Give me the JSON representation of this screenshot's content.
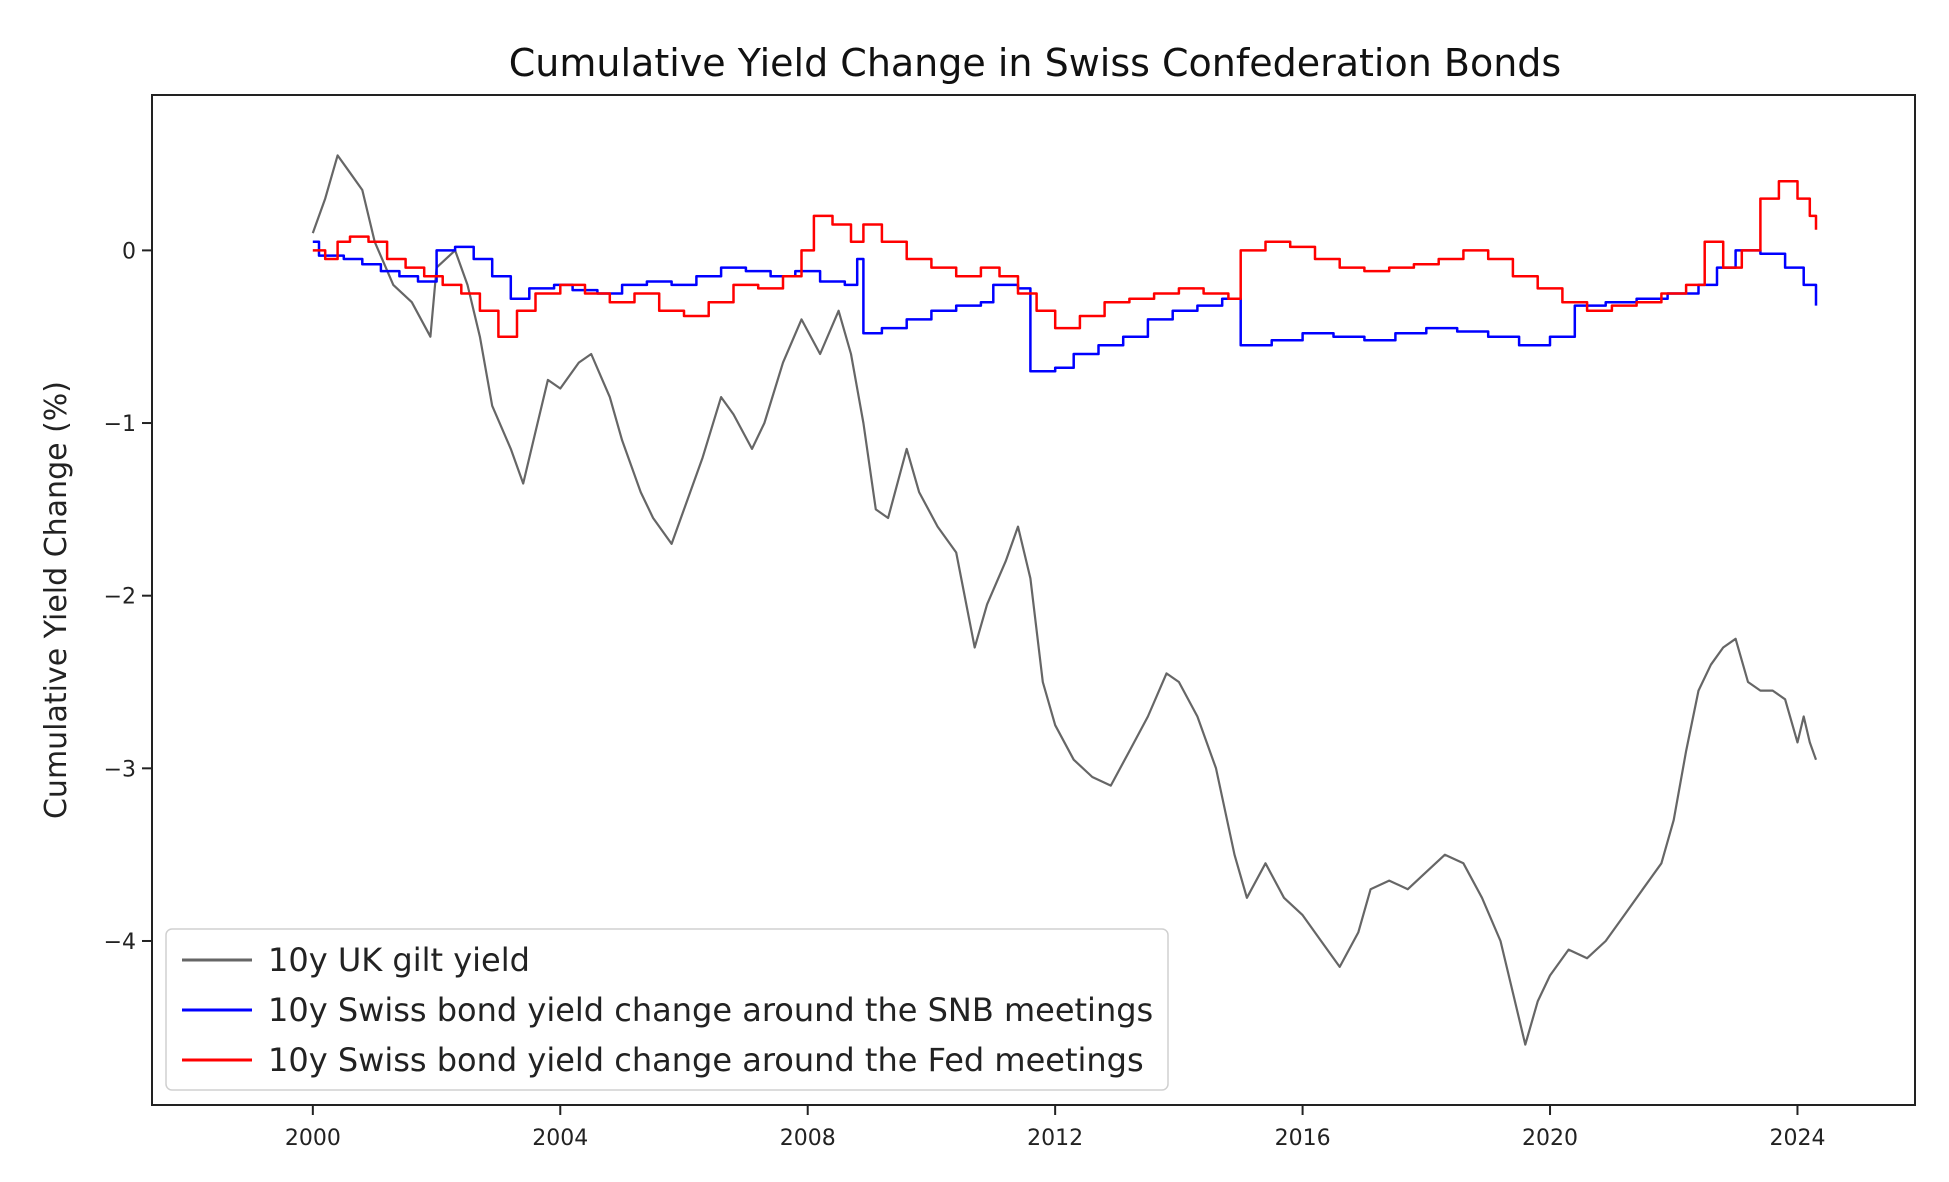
{
  "chart_data": {
    "type": "line",
    "title": "Cumulative Yield Change in Swiss Confederation Bonds",
    "xlabel": "",
    "ylabel": "Cumulative Yield Change (%)",
    "xlim": [
      1997.4,
      2025.9
    ],
    "ylim": [
      -4.95,
      0.9
    ],
    "xticks": [
      2000,
      2004,
      2008,
      2012,
      2016,
      2020,
      2024
    ],
    "xtick_labels": [
      "2000",
      "2004",
      "2008",
      "2012",
      "2016",
      "2020",
      "2024"
    ],
    "yticks": [
      0,
      -1,
      -2,
      -3,
      -4
    ],
    "ytick_labels": [
      "0",
      "−1",
      "−2",
      "−3",
      "−4"
    ],
    "grid": false,
    "legend_position": "lower-left",
    "series": [
      {
        "name": "10y UK gilt yield",
        "color": "#666666",
        "step": false,
        "points": [
          [
            2000.0,
            0.1
          ],
          [
            2000.2,
            0.3
          ],
          [
            2000.4,
            0.55
          ],
          [
            2000.6,
            0.45
          ],
          [
            2000.8,
            0.35
          ],
          [
            2001.0,
            0.05
          ],
          [
            2001.3,
            -0.2
          ],
          [
            2001.6,
            -0.3
          ],
          [
            2001.9,
            -0.5
          ],
          [
            2002.0,
            -0.1
          ],
          [
            2002.3,
            0.0
          ],
          [
            2002.5,
            -0.2
          ],
          [
            2002.7,
            -0.5
          ],
          [
            2002.9,
            -0.9
          ],
          [
            2003.2,
            -1.15
          ],
          [
            2003.4,
            -1.35
          ],
          [
            2003.6,
            -1.05
          ],
          [
            2003.8,
            -0.75
          ],
          [
            2004.0,
            -0.8
          ],
          [
            2004.3,
            -0.65
          ],
          [
            2004.5,
            -0.6
          ],
          [
            2004.8,
            -0.85
          ],
          [
            2005.0,
            -1.1
          ],
          [
            2005.3,
            -1.4
          ],
          [
            2005.5,
            -1.55
          ],
          [
            2005.8,
            -1.7
          ],
          [
            2006.0,
            -1.5
          ],
          [
            2006.3,
            -1.2
          ],
          [
            2006.6,
            -0.85
          ],
          [
            2006.8,
            -0.95
          ],
          [
            2007.1,
            -1.15
          ],
          [
            2007.3,
            -1.0
          ],
          [
            2007.6,
            -0.65
          ],
          [
            2007.9,
            -0.4
          ],
          [
            2008.2,
            -0.6
          ],
          [
            2008.5,
            -0.35
          ],
          [
            2008.7,
            -0.6
          ],
          [
            2008.9,
            -1.0
          ],
          [
            2009.1,
            -1.5
          ],
          [
            2009.3,
            -1.55
          ],
          [
            2009.6,
            -1.15
          ],
          [
            2009.8,
            -1.4
          ],
          [
            2010.1,
            -1.6
          ],
          [
            2010.4,
            -1.75
          ],
          [
            2010.7,
            -2.3
          ],
          [
            2010.9,
            -2.05
          ],
          [
            2011.2,
            -1.8
          ],
          [
            2011.4,
            -1.6
          ],
          [
            2011.6,
            -1.9
          ],
          [
            2011.8,
            -2.5
          ],
          [
            2012.0,
            -2.75
          ],
          [
            2012.3,
            -2.95
          ],
          [
            2012.6,
            -3.05
          ],
          [
            2012.9,
            -3.1
          ],
          [
            2013.2,
            -2.9
          ],
          [
            2013.5,
            -2.7
          ],
          [
            2013.8,
            -2.45
          ],
          [
            2014.0,
            -2.5
          ],
          [
            2014.3,
            -2.7
          ],
          [
            2014.6,
            -3.0
          ],
          [
            2014.9,
            -3.5
          ],
          [
            2015.1,
            -3.75
          ],
          [
            2015.4,
            -3.55
          ],
          [
            2015.7,
            -3.75
          ],
          [
            2016.0,
            -3.85
          ],
          [
            2016.3,
            -4.0
          ],
          [
            2016.6,
            -4.15
          ],
          [
            2016.9,
            -3.95
          ],
          [
            2017.1,
            -3.7
          ],
          [
            2017.4,
            -3.65
          ],
          [
            2017.7,
            -3.7
          ],
          [
            2018.0,
            -3.6
          ],
          [
            2018.3,
            -3.5
          ],
          [
            2018.6,
            -3.55
          ],
          [
            2018.9,
            -3.75
          ],
          [
            2019.2,
            -4.0
          ],
          [
            2019.4,
            -4.3
          ],
          [
            2019.6,
            -4.6
          ],
          [
            2019.8,
            -4.35
          ],
          [
            2020.0,
            -4.2
          ],
          [
            2020.3,
            -4.05
          ],
          [
            2020.6,
            -4.1
          ],
          [
            2020.9,
            -4.0
          ],
          [
            2021.2,
            -3.85
          ],
          [
            2021.5,
            -3.7
          ],
          [
            2021.8,
            -3.55
          ],
          [
            2022.0,
            -3.3
          ],
          [
            2022.2,
            -2.9
          ],
          [
            2022.4,
            -2.55
          ],
          [
            2022.6,
            -2.4
          ],
          [
            2022.8,
            -2.3
          ],
          [
            2023.0,
            -2.25
          ],
          [
            2023.2,
            -2.5
          ],
          [
            2023.4,
            -2.55
          ],
          [
            2023.6,
            -2.55
          ],
          [
            2023.8,
            -2.6
          ],
          [
            2024.0,
            -2.85
          ],
          [
            2024.1,
            -2.7
          ],
          [
            2024.2,
            -2.85
          ],
          [
            2024.3,
            -2.95
          ]
        ]
      },
      {
        "name": "10y Swiss bond yield change around the SNB meetings",
        "color": "#0000ff",
        "step": true,
        "points": [
          [
            2000.0,
            0.05
          ],
          [
            2000.1,
            -0.03
          ],
          [
            2000.5,
            -0.05
          ],
          [
            2000.8,
            -0.08
          ],
          [
            2001.1,
            -0.12
          ],
          [
            2001.4,
            -0.15
          ],
          [
            2001.7,
            -0.18
          ],
          [
            2002.0,
            0.0
          ],
          [
            2002.3,
            0.02
          ],
          [
            2002.6,
            -0.05
          ],
          [
            2002.9,
            -0.15
          ],
          [
            2003.2,
            -0.28
          ],
          [
            2003.5,
            -0.22
          ],
          [
            2003.9,
            -0.2
          ],
          [
            2004.2,
            -0.23
          ],
          [
            2004.6,
            -0.25
          ],
          [
            2005.0,
            -0.2
          ],
          [
            2005.4,
            -0.18
          ],
          [
            2005.8,
            -0.2
          ],
          [
            2006.2,
            -0.15
          ],
          [
            2006.6,
            -0.1
          ],
          [
            2007.0,
            -0.12
          ],
          [
            2007.4,
            -0.15
          ],
          [
            2007.8,
            -0.12
          ],
          [
            2008.2,
            -0.18
          ],
          [
            2008.6,
            -0.2
          ],
          [
            2008.8,
            -0.05
          ],
          [
            2008.9,
            -0.48
          ],
          [
            2009.2,
            -0.45
          ],
          [
            2009.6,
            -0.4
          ],
          [
            2010.0,
            -0.35
          ],
          [
            2010.4,
            -0.32
          ],
          [
            2010.8,
            -0.3
          ],
          [
            2011.0,
            -0.2
          ],
          [
            2011.4,
            -0.22
          ],
          [
            2011.6,
            -0.7
          ],
          [
            2012.0,
            -0.68
          ],
          [
            2012.3,
            -0.6
          ],
          [
            2012.7,
            -0.55
          ],
          [
            2013.1,
            -0.5
          ],
          [
            2013.5,
            -0.4
          ],
          [
            2013.9,
            -0.35
          ],
          [
            2014.3,
            -0.32
          ],
          [
            2014.7,
            -0.28
          ],
          [
            2015.0,
            -0.55
          ],
          [
            2015.5,
            -0.52
          ],
          [
            2016.0,
            -0.48
          ],
          [
            2016.5,
            -0.5
          ],
          [
            2017.0,
            -0.52
          ],
          [
            2017.5,
            -0.48
          ],
          [
            2018.0,
            -0.45
          ],
          [
            2018.5,
            -0.47
          ],
          [
            2019.0,
            -0.5
          ],
          [
            2019.5,
            -0.55
          ],
          [
            2020.0,
            -0.5
          ],
          [
            2020.4,
            -0.32
          ],
          [
            2020.9,
            -0.3
          ],
          [
            2021.4,
            -0.28
          ],
          [
            2021.9,
            -0.25
          ],
          [
            2022.4,
            -0.2
          ],
          [
            2022.7,
            -0.1
          ],
          [
            2023.0,
            0.0
          ],
          [
            2023.4,
            -0.02
          ],
          [
            2023.8,
            -0.1
          ],
          [
            2024.1,
            -0.2
          ],
          [
            2024.3,
            -0.32
          ]
        ]
      },
      {
        "name": "10y Swiss bond yield change around the Fed meetings",
        "color": "#ff0000",
        "step": true,
        "points": [
          [
            2000.0,
            0.0
          ],
          [
            2000.2,
            -0.05
          ],
          [
            2000.4,
            0.05
          ],
          [
            2000.6,
            0.08
          ],
          [
            2000.9,
            0.05
          ],
          [
            2001.2,
            -0.05
          ],
          [
            2001.5,
            -0.1
          ],
          [
            2001.8,
            -0.15
          ],
          [
            2002.1,
            -0.2
          ],
          [
            2002.4,
            -0.25
          ],
          [
            2002.7,
            -0.35
          ],
          [
            2003.0,
            -0.5
          ],
          [
            2003.3,
            -0.35
          ],
          [
            2003.6,
            -0.25
          ],
          [
            2004.0,
            -0.2
          ],
          [
            2004.4,
            -0.25
          ],
          [
            2004.8,
            -0.3
          ],
          [
            2005.2,
            -0.25
          ],
          [
            2005.6,
            -0.35
          ],
          [
            2006.0,
            -0.38
          ],
          [
            2006.4,
            -0.3
          ],
          [
            2006.8,
            -0.2
          ],
          [
            2007.2,
            -0.22
          ],
          [
            2007.6,
            -0.15
          ],
          [
            2007.9,
            0.0
          ],
          [
            2008.1,
            0.2
          ],
          [
            2008.4,
            0.15
          ],
          [
            2008.7,
            0.05
          ],
          [
            2008.9,
            0.15
          ],
          [
            2009.2,
            0.05
          ],
          [
            2009.6,
            -0.05
          ],
          [
            2010.0,
            -0.1
          ],
          [
            2010.4,
            -0.15
          ],
          [
            2010.8,
            -0.1
          ],
          [
            2011.1,
            -0.15
          ],
          [
            2011.4,
            -0.25
          ],
          [
            2011.7,
            -0.35
          ],
          [
            2012.0,
            -0.45
          ],
          [
            2012.4,
            -0.38
          ],
          [
            2012.8,
            -0.3
          ],
          [
            2013.2,
            -0.28
          ],
          [
            2013.6,
            -0.25
          ],
          [
            2014.0,
            -0.22
          ],
          [
            2014.4,
            -0.25
          ],
          [
            2014.8,
            -0.28
          ],
          [
            2015.0,
            0.0
          ],
          [
            2015.4,
            0.05
          ],
          [
            2015.8,
            0.02
          ],
          [
            2016.2,
            -0.05
          ],
          [
            2016.6,
            -0.1
          ],
          [
            2017.0,
            -0.12
          ],
          [
            2017.4,
            -0.1
          ],
          [
            2017.8,
            -0.08
          ],
          [
            2018.2,
            -0.05
          ],
          [
            2018.6,
            0.0
          ],
          [
            2019.0,
            -0.05
          ],
          [
            2019.4,
            -0.15
          ],
          [
            2019.8,
            -0.22
          ],
          [
            2020.2,
            -0.3
          ],
          [
            2020.6,
            -0.35
          ],
          [
            2021.0,
            -0.32
          ],
          [
            2021.4,
            -0.3
          ],
          [
            2021.8,
            -0.25
          ],
          [
            2022.2,
            -0.2
          ],
          [
            2022.5,
            0.05
          ],
          [
            2022.8,
            -0.1
          ],
          [
            2023.1,
            0.0
          ],
          [
            2023.4,
            0.3
          ],
          [
            2023.7,
            0.4
          ],
          [
            2024.0,
            0.3
          ],
          [
            2024.2,
            0.2
          ],
          [
            2024.3,
            0.12
          ]
        ]
      }
    ]
  }
}
